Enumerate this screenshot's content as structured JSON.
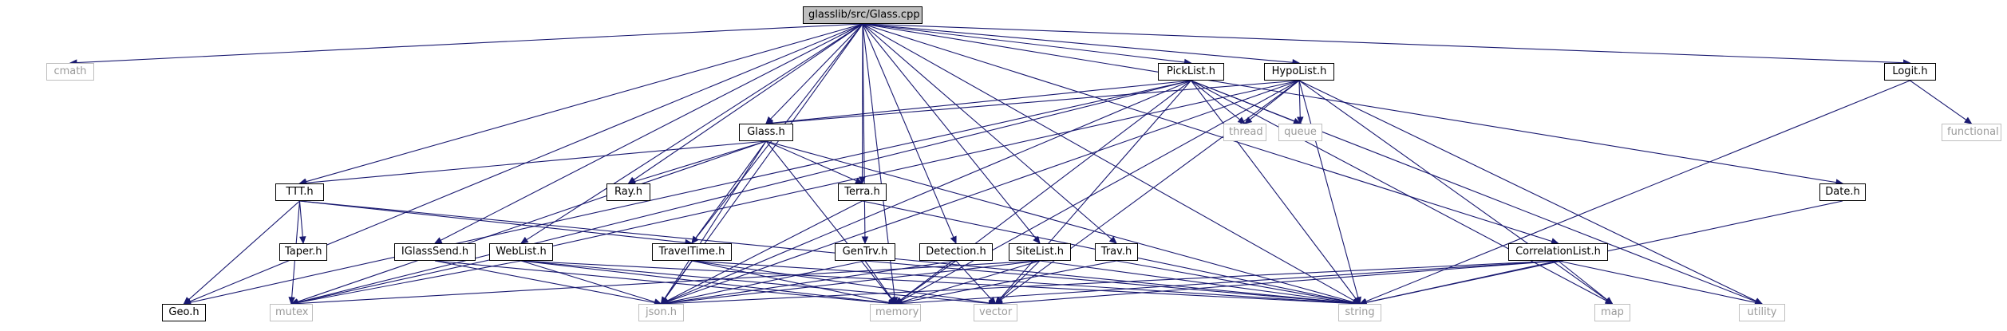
{
  "graph": {
    "root": "glasslib/src/Glass.cpp",
    "nodes": {
      "glass_cpp": "glasslib/src/Glass.cpp",
      "cmath": "cmath",
      "geo_h": "Geo.h",
      "ttt_h": "TTT.h",
      "iglasssend_h": "IGlassSend.h",
      "weblist_h": "WebList.h",
      "traveltime_h": "TravelTime.h",
      "ray_h": "Ray.h",
      "glass_h": "Glass.h",
      "terra_h": "Terra.h",
      "gentrv_h": "GenTrv.h",
      "detection_h": "Detection.h",
      "sitelist_h": "SiteList.h",
      "trav_h": "Trav.h",
      "picklist_h": "PickList.h",
      "hypolist_h": "HypoList.h",
      "correlationlist_h": "CorrelationList.h",
      "date_h": "Date.h",
      "logit_h": "Logit.h",
      "functional": "functional",
      "taper_h": "Taper.h",
      "mutex": "mutex",
      "json_h": "json.h",
      "memory": "memory",
      "vector": "vector",
      "string": "string",
      "map": "map",
      "utility": "utility",
      "thread": "thread",
      "queue": "queue"
    },
    "edges": [
      [
        "glass_cpp",
        "cmath"
      ],
      [
        "glass_cpp",
        "geo_h"
      ],
      [
        "glass_cpp",
        "ttt_h"
      ],
      [
        "glass_cpp",
        "iglasssend_h"
      ],
      [
        "glass_cpp",
        "weblist_h"
      ],
      [
        "glass_cpp",
        "traveltime_h"
      ],
      [
        "glass_cpp",
        "ray_h"
      ],
      [
        "glass_cpp",
        "glass_h"
      ],
      [
        "glass_cpp",
        "terra_h"
      ],
      [
        "glass_cpp",
        "gentrv_h"
      ],
      [
        "glass_cpp",
        "detection_h"
      ],
      [
        "glass_cpp",
        "sitelist_h"
      ],
      [
        "glass_cpp",
        "trav_h"
      ],
      [
        "glass_cpp",
        "picklist_h"
      ],
      [
        "glass_cpp",
        "hypolist_h"
      ],
      [
        "glass_cpp",
        "correlationlist_h"
      ],
      [
        "glass_cpp",
        "date_h"
      ],
      [
        "glass_cpp",
        "logit_h"
      ],
      [
        "glass_cpp",
        "json_h"
      ],
      [
        "glass_cpp",
        "memory"
      ],
      [
        "glass_cpp",
        "string"
      ],
      [
        "picklist_h",
        "glass_h"
      ],
      [
        "picklist_h",
        "thread"
      ],
      [
        "picklist_h",
        "queue"
      ],
      [
        "picklist_h",
        "mutex"
      ],
      [
        "picklist_h",
        "memory"
      ],
      [
        "picklist_h",
        "vector"
      ],
      [
        "picklist_h",
        "string"
      ],
      [
        "picklist_h",
        "json_h"
      ],
      [
        "picklist_h",
        "map"
      ],
      [
        "picklist_h",
        "utility"
      ],
      [
        "picklist_h",
        "geo_h"
      ],
      [
        "hypolist_h",
        "glass_h"
      ],
      [
        "hypolist_h",
        "thread"
      ],
      [
        "hypolist_h",
        "queue"
      ],
      [
        "hypolist_h",
        "mutex"
      ],
      [
        "hypolist_h",
        "memory"
      ],
      [
        "hypolist_h",
        "vector"
      ],
      [
        "hypolist_h",
        "string"
      ],
      [
        "hypolist_h",
        "json_h"
      ],
      [
        "hypolist_h",
        "map"
      ],
      [
        "hypolist_h",
        "utility"
      ],
      [
        "glass_h",
        "ttt_h"
      ],
      [
        "glass_h",
        "ray_h"
      ],
      [
        "glass_h",
        "terra_h"
      ],
      [
        "glass_h",
        "traveltime_h"
      ],
      [
        "glass_h",
        "json_h"
      ],
      [
        "glass_h",
        "memory"
      ],
      [
        "glass_h",
        "string"
      ],
      [
        "glass_h",
        "mutex"
      ],
      [
        "ttt_h",
        "geo_h"
      ],
      [
        "ttt_h",
        "taper_h"
      ],
      [
        "ttt_h",
        "traveltime_h"
      ],
      [
        "ttt_h",
        "string"
      ],
      [
        "ttt_h",
        "mutex"
      ],
      [
        "terra_h",
        "json_h"
      ],
      [
        "terra_h",
        "string"
      ],
      [
        "traveltime_h",
        "json_h"
      ],
      [
        "traveltime_h",
        "memory"
      ],
      [
        "traveltime_h",
        "string"
      ],
      [
        "traveltime_h",
        "vector"
      ],
      [
        "iglasssend_h",
        "json_h"
      ],
      [
        "iglasssend_h",
        "memory"
      ],
      [
        "weblist_h",
        "json_h"
      ],
      [
        "weblist_h",
        "mutex"
      ],
      [
        "weblist_h",
        "memory"
      ],
      [
        "weblist_h",
        "vector"
      ],
      [
        "weblist_h",
        "string"
      ],
      [
        "gentrv_h",
        "json_h"
      ],
      [
        "gentrv_h",
        "memory"
      ],
      [
        "gentrv_h",
        "string"
      ],
      [
        "detection_h",
        "json_h"
      ],
      [
        "detection_h",
        "memory"
      ],
      [
        "detection_h",
        "vector"
      ],
      [
        "sitelist_h",
        "json_h"
      ],
      [
        "sitelist_h",
        "memory"
      ],
      [
        "sitelist_h",
        "vector"
      ],
      [
        "sitelist_h",
        "string"
      ],
      [
        "sitelist_h",
        "mutex"
      ],
      [
        "trav_h",
        "memory"
      ],
      [
        "trav_h",
        "string"
      ],
      [
        "correlationlist_h",
        "json_h"
      ],
      [
        "correlationlist_h",
        "memory"
      ],
      [
        "correlationlist_h",
        "vector"
      ],
      [
        "correlationlist_h",
        "string"
      ],
      [
        "correlationlist_h",
        "map"
      ],
      [
        "correlationlist_h",
        "utility"
      ],
      [
        "date_h",
        "string"
      ],
      [
        "logit_h",
        "functional"
      ],
      [
        "logit_h",
        "string"
      ]
    ]
  }
}
